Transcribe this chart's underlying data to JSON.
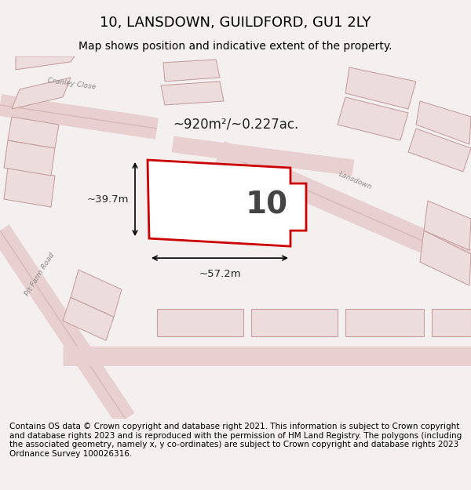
{
  "title": "10, LANSDOWN, GUILDFORD, GU1 2LY",
  "subtitle": "Map shows position and indicative extent of the property.",
  "area_label": "~920m²/~0.227ac.",
  "plot_number": "10",
  "width_label": "~57.2m",
  "height_label": "~39.7m",
  "footer_text": "Contains OS data © Crown copyright and database right 2021. This information is subject to Crown copyright and database rights 2023 and is reproduced with the permission of HM Land Registry. The polygons (including the associated geometry, namely x, y co-ordinates) are subject to Crown copyright and database rights 2023 Ordnance Survey 100026316.",
  "background_color": "#f0eeee",
  "map_bg_color": "#f5f0f0",
  "road_color": "#e8d0d0",
  "building_color": "#e8d8d8",
  "building_edge_color": "#d0a0a0",
  "plot_fill": "#ffffff",
  "plot_edge_color": "#cc0000",
  "plot_edge_width": 2.0,
  "title_fontsize": 13,
  "subtitle_fontsize": 10,
  "label_fontsize": 11,
  "footer_fontsize": 7.5
}
